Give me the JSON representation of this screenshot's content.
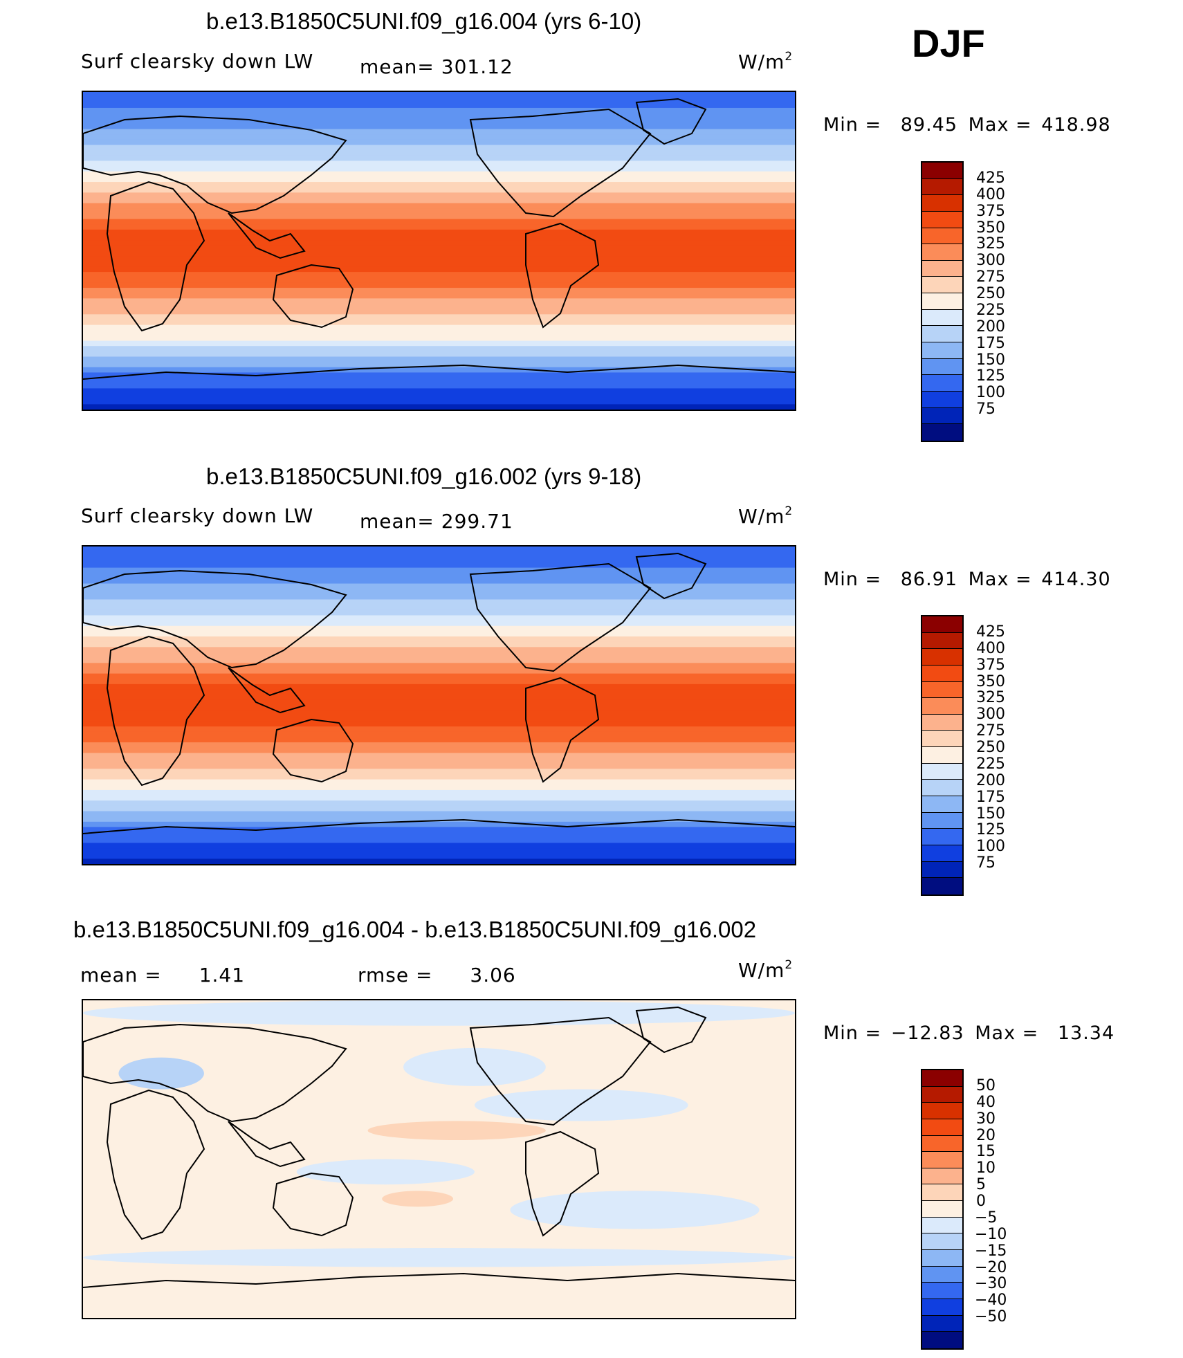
{
  "season": "DJF",
  "units": {
    "base": "W/m",
    "sup": "2"
  },
  "panels": [
    {
      "title": "b.e13.B1850C5UNI.f09_g16.004 (yrs 6-10)",
      "variable": "Surf clearsky down LW",
      "mean_label": "mean=",
      "mean_value": "301.12",
      "min_label": "Min =",
      "min_value": "89.45",
      "max_label": "Max =",
      "max_value": "418.98"
    },
    {
      "title": "b.e13.B1850C5UNI.f09_g16.002 (yrs 9-18)",
      "variable": "Surf clearsky down LW",
      "mean_label": "mean=",
      "mean_value": "299.71",
      "min_label": "Min =",
      "min_value": "86.91",
      "max_label": "Max =",
      "max_value": "414.30"
    },
    {
      "title": "b.e13.B1850C5UNI.f09_g16.004 - b.e13.B1850C5UNI.f09_g16.002",
      "mean_label": "mean =",
      "mean_value": "1.41",
      "rmse_label": "rmse =",
      "rmse_value": "3.06",
      "min_label": "Min =",
      "min_value": "−12.83",
      "max_label": "Max =",
      "max_value": "13.34"
    }
  ],
  "chart_data": [
    {
      "type": "heatmap",
      "title": "b.e13.B1850C5UNI.f09_g16.004 (yrs 6-10)",
      "levels": [
        75,
        100,
        125,
        150,
        175,
        200,
        225,
        250,
        275,
        300,
        325,
        350,
        375,
        400,
        425
      ],
      "level_labels": [
        "425",
        "400",
        "375",
        "350",
        "325",
        "300",
        "275",
        "250",
        "225",
        "200",
        "175",
        "150",
        "125",
        "100",
        "75"
      ],
      "colors": [
        "#8b0000",
        "#b51a00",
        "#d83100",
        "#f24b12",
        "#f8652a",
        "#fb8c59",
        "#fcb28d",
        "#fdd5b9",
        "#fdf0e2",
        "#dbeafb",
        "#b7d3f7",
        "#8db7f4",
        "#6094f2",
        "#3468f0",
        "#103fe0",
        "#0024b8",
        "#000d80"
      ],
      "min": 89.45,
      "max": 418.98,
      "mean": 301.12,
      "zonal_profile": {
        "lat": [
          90,
          70,
          50,
          30,
          10,
          -10,
          -30,
          -50,
          -70,
          -90
        ],
        "value": [
          130,
          170,
          230,
          310,
          380,
          385,
          320,
          250,
          150,
          90
        ]
      }
    },
    {
      "type": "heatmap",
      "title": "b.e13.B1850C5UNI.f09_g16.002 (yrs 9-18)",
      "levels": [
        75,
        100,
        125,
        150,
        175,
        200,
        225,
        250,
        275,
        300,
        325,
        350,
        375,
        400,
        425
      ],
      "level_labels": [
        "425",
        "400",
        "375",
        "350",
        "325",
        "300",
        "275",
        "250",
        "225",
        "200",
        "175",
        "150",
        "125",
        "100",
        "75"
      ],
      "colors": [
        "#8b0000",
        "#b51a00",
        "#d83100",
        "#f24b12",
        "#f8652a",
        "#fb8c59",
        "#fcb28d",
        "#fdd5b9",
        "#fdf0e2",
        "#dbeafb",
        "#b7d3f7",
        "#8db7f4",
        "#6094f2",
        "#3468f0",
        "#103fe0",
        "#0024b8",
        "#000d80"
      ],
      "min": 86.91,
      "max": 414.3,
      "mean": 299.71,
      "zonal_profile": {
        "lat": [
          90,
          70,
          50,
          30,
          10,
          -10,
          -30,
          -50,
          -70,
          -90
        ],
        "value": [
          128,
          168,
          228,
          308,
          378,
          383,
          318,
          248,
          148,
          88
        ]
      }
    },
    {
      "type": "heatmap",
      "title": "b.e13.B1850C5UNI.f09_g16.004 - b.e13.B1850C5UNI.f09_g16.002",
      "levels": [
        -50,
        -40,
        -30,
        -20,
        -15,
        -10,
        -5,
        0,
        5,
        10,
        15,
        20,
        30,
        40,
        50
      ],
      "level_labels": [
        "50",
        "40",
        "30",
        "20",
        "15",
        "10",
        "5",
        "0",
        "−5",
        "−10",
        "−15",
        "−20",
        "−30",
        "−40",
        "−50"
      ],
      "colors": [
        "#8b0000",
        "#b51a00",
        "#d83100",
        "#f24b12",
        "#f8652a",
        "#fb8c59",
        "#fcb28d",
        "#fdd5b9",
        "#fdf0e2",
        "#dbeafb",
        "#b7d3f7",
        "#8db7f4",
        "#6094f2",
        "#3468f0",
        "#103fe0",
        "#0024b8",
        "#000d80"
      ],
      "min": -12.83,
      "max": 13.34,
      "mean": 1.41,
      "rmse": 3.06
    }
  ]
}
